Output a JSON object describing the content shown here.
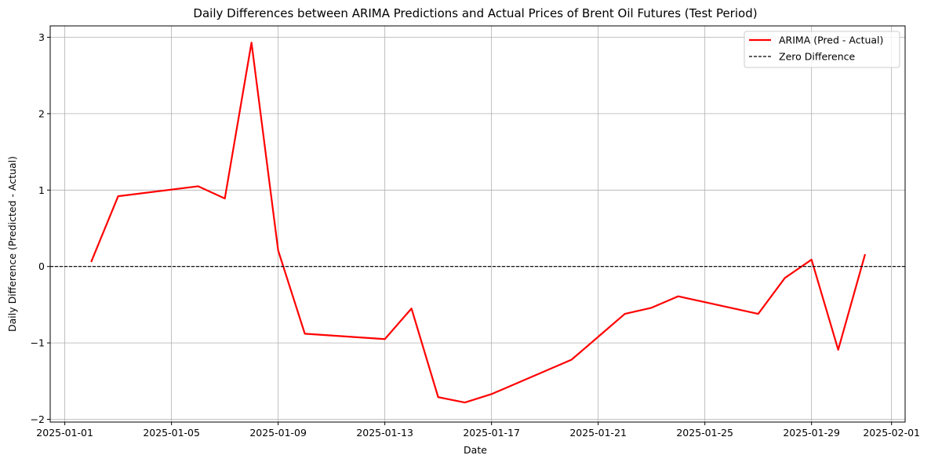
{
  "chart_data": {
    "type": "line",
    "title": "Daily Differences between ARIMA Predictions and Actual Prices of Brent Oil Futures (Test Period)",
    "xlabel": "Date",
    "ylabel": "Daily Difference (Predicted - Actual)",
    "xlim": [
      "2025-01-01",
      "2025-02-01"
    ],
    "ylim": [
      -2,
      3
    ],
    "grid": true,
    "legend_position": "top-right",
    "x_ticks": [
      "2025-01-01",
      "2025-01-05",
      "2025-01-09",
      "2025-01-13",
      "2025-01-17",
      "2025-01-21",
      "2025-01-25",
      "2025-01-29",
      "2025-02-01"
    ],
    "y_ticks": [
      {
        "value": -2,
        "label": "−2"
      },
      {
        "value": -1,
        "label": "−1"
      },
      {
        "value": 0,
        "label": "0"
      },
      {
        "value": 1,
        "label": "1"
      },
      {
        "value": 2,
        "label": "2"
      },
      {
        "value": 3,
        "label": "3"
      }
    ],
    "series": [
      {
        "name": "ARIMA (Pred - Actual)",
        "color": "#ff0000",
        "style": "solid",
        "points": [
          {
            "x": "2025-01-02",
            "y": 0.07
          },
          {
            "x": "2025-01-03",
            "y": 0.92
          },
          {
            "x": "2025-01-06",
            "y": 1.05
          },
          {
            "x": "2025-01-07",
            "y": 0.89
          },
          {
            "x": "2025-01-08",
            "y": 2.93
          },
          {
            "x": "2025-01-09",
            "y": 0.21
          },
          {
            "x": "2025-01-10",
            "y": -0.88
          },
          {
            "x": "2025-01-13",
            "y": -0.95
          },
          {
            "x": "2025-01-14",
            "y": -0.55
          },
          {
            "x": "2025-01-15",
            "y": -1.71
          },
          {
            "x": "2025-01-16",
            "y": -1.78
          },
          {
            "x": "2025-01-17",
            "y": -1.67
          },
          {
            "x": "2025-01-20",
            "y": -1.22
          },
          {
            "x": "2025-01-22",
            "y": -0.62
          },
          {
            "x": "2025-01-23",
            "y": -0.54
          },
          {
            "x": "2025-01-24",
            "y": -0.39
          },
          {
            "x": "2025-01-27",
            "y": -0.62
          },
          {
            "x": "2025-01-28",
            "y": -0.15
          },
          {
            "x": "2025-01-29",
            "y": 0.09
          },
          {
            "x": "2025-01-30",
            "y": -1.09
          },
          {
            "x": "2025-01-31",
            "y": 0.15
          }
        ]
      },
      {
        "name": "Zero Difference",
        "color": "#000000",
        "style": "dashed",
        "constant_y": 0
      }
    ]
  }
}
